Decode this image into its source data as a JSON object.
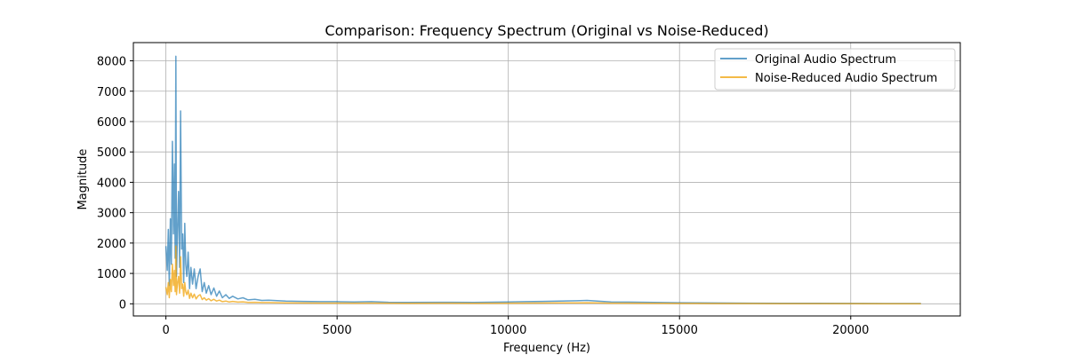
{
  "chart_data": {
    "type": "line",
    "title": "Comparison: Frequency Spectrum (Original vs Noise-Reduced)",
    "xlabel": "Frequency (Hz)",
    "ylabel": "Magnitude",
    "xlim": [
      -950,
      23200
    ],
    "ylim": [
      -400,
      8600
    ],
    "x_ticks": [
      0,
      5000,
      10000,
      15000,
      20000
    ],
    "x_tick_labels": [
      "0",
      "5000",
      "10000",
      "15000",
      "20000"
    ],
    "y_ticks": [
      0,
      1000,
      2000,
      3000,
      4000,
      5000,
      6000,
      7000,
      8000
    ],
    "y_tick_labels": [
      "0",
      "1000",
      "2000",
      "3000",
      "4000",
      "5000",
      "6000",
      "7000",
      "8000"
    ],
    "grid": true,
    "legend_position": "top-right",
    "series": [
      {
        "name": "Original Audio Spectrum",
        "color": "#1f77b4",
        "opacity": 0.7,
        "x": [
          0,
          40,
          70,
          100,
          130,
          160,
          190,
          220,
          250,
          270,
          290,
          310,
          340,
          370,
          400,
          430,
          460,
          490,
          520,
          550,
          580,
          610,
          650,
          690,
          730,
          780,
          830,
          880,
          940,
          1000,
          1060,
          1120,
          1180,
          1250,
          1320,
          1400,
          1480,
          1560,
          1650,
          1750,
          1850,
          1950,
          2100,
          2250,
          2400,
          2600,
          2800,
          3000,
          3500,
          4000,
          4500,
          5000,
          5500,
          6000,
          6500,
          7000,
          8000,
          9000,
          10000,
          10500,
          11000,
          11500,
          12000,
          12300,
          12600,
          13000,
          13500,
          14000,
          14500,
          15000,
          15500,
          16000,
          16500,
          17000,
          18000,
          19000,
          20000,
          21000,
          22050
        ],
        "y": [
          1900,
          1100,
          2450,
          600,
          2800,
          1300,
          5350,
          2300,
          4600,
          1500,
          8150,
          900,
          2450,
          3700,
          1200,
          6350,
          1800,
          2300,
          700,
          2650,
          1300,
          900,
          1700,
          500,
          1200,
          650,
          1150,
          500,
          900,
          1150,
          400,
          700,
          350,
          600,
          300,
          520,
          250,
          420,
          200,
          300,
          180,
          250,
          160,
          200,
          130,
          150,
          110,
          120,
          90,
          80,
          70,
          70,
          60,
          70,
          50,
          45,
          50,
          45,
          60,
          70,
          80,
          90,
          100,
          110,
          90,
          60,
          55,
          50,
          40,
          35,
          30,
          28,
          25,
          22,
          18,
          15,
          12,
          10,
          8
        ]
      },
      {
        "name": "Noise-Reduced Audio Spectrum",
        "color": "#f0a30a",
        "opacity": 0.75,
        "x": [
          0,
          40,
          70,
          100,
          130,
          160,
          190,
          220,
          250,
          270,
          290,
          310,
          340,
          370,
          400,
          430,
          460,
          490,
          520,
          550,
          580,
          610,
          650,
          690,
          730,
          780,
          830,
          880,
          940,
          1000,
          1060,
          1120,
          1180,
          1250,
          1320,
          1400,
          1480,
          1560,
          1650,
          1750,
          1850,
          1950,
          2100,
          2250,
          2400,
          2600,
          2800,
          3000,
          3500,
          4000,
          4500,
          5000,
          5500,
          6000,
          6500,
          7000,
          8000,
          9000,
          10000,
          10500,
          11000,
          11500,
          12000,
          12300,
          12600,
          13000,
          13500,
          14000,
          14500,
          15000,
          15500,
          16000,
          16500,
          17000,
          18000,
          19000,
          20000,
          21000,
          22050
        ],
        "y": [
          550,
          300,
          700,
          200,
          800,
          400,
          1300,
          600,
          1100,
          400,
          1900,
          300,
          700,
          900,
          350,
          1550,
          500,
          650,
          250,
          700,
          400,
          300,
          450,
          180,
          350,
          200,
          320,
          160,
          260,
          300,
          140,
          200,
          120,
          170,
          100,
          150,
          90,
          120,
          70,
          90,
          60,
          80,
          55,
          65,
          45,
          50,
          40,
          40,
          30,
          28,
          25,
          25,
          22,
          25,
          20,
          18,
          20,
          18,
          22,
          25,
          28,
          30,
          32,
          35,
          30,
          22,
          20,
          18,
          15,
          13,
          11,
          10,
          9,
          8,
          7,
          6,
          5,
          4,
          3
        ]
      }
    ]
  }
}
